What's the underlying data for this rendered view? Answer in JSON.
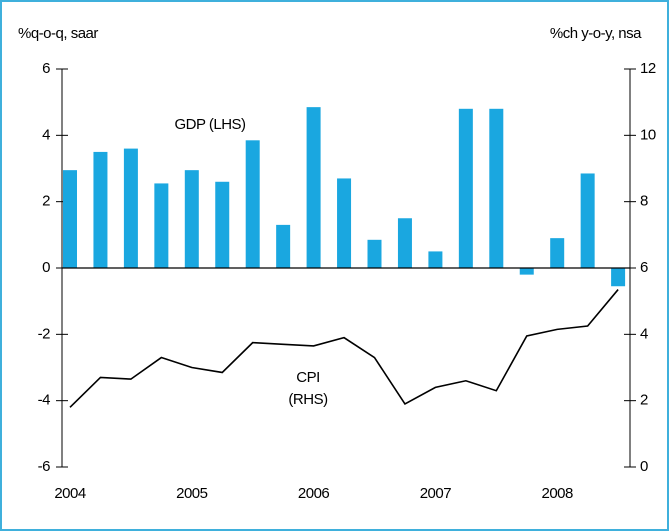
{
  "chart_data": {
    "type": "bar_line",
    "y_label": "%q-o-q, saar",
    "y2_label": "%ch y-o-y, nsa",
    "categories": [
      "2004",
      null,
      null,
      null,
      "2005",
      null,
      null,
      null,
      "2006",
      null,
      null,
      null,
      "2007",
      null,
      null,
      null,
      "2008",
      null,
      null
    ],
    "series": [
      {
        "name": "GDP (LHS)",
        "type": "bar",
        "color": "#1aa7e0",
        "values": [
          2.95,
          3.5,
          3.6,
          2.55,
          2.95,
          2.6,
          3.85,
          1.3,
          4.85,
          2.7,
          0.85,
          1.5,
          0.5,
          4.8,
          4.8,
          -0.2,
          0.9,
          2.85,
          -0.55
        ]
      },
      {
        "name": "CPI (RHS)",
        "type": "line",
        "axis": "y2",
        "color": "#000000",
        "values": [
          1.8,
          2.7,
          2.65,
          3.3,
          3.0,
          2.85,
          3.75,
          3.7,
          3.65,
          3.9,
          3.3,
          1.9,
          2.4,
          2.6,
          2.3,
          3.95,
          4.15,
          4.25,
          5.35
        ]
      }
    ],
    "ylim": [
      -6,
      6
    ],
    "yticks": [
      -6,
      -4,
      -2,
      0,
      2,
      4,
      6
    ],
    "y2lim": [
      0,
      12
    ],
    "y2ticks": [
      0,
      2,
      4,
      6,
      8,
      10,
      12
    ]
  }
}
